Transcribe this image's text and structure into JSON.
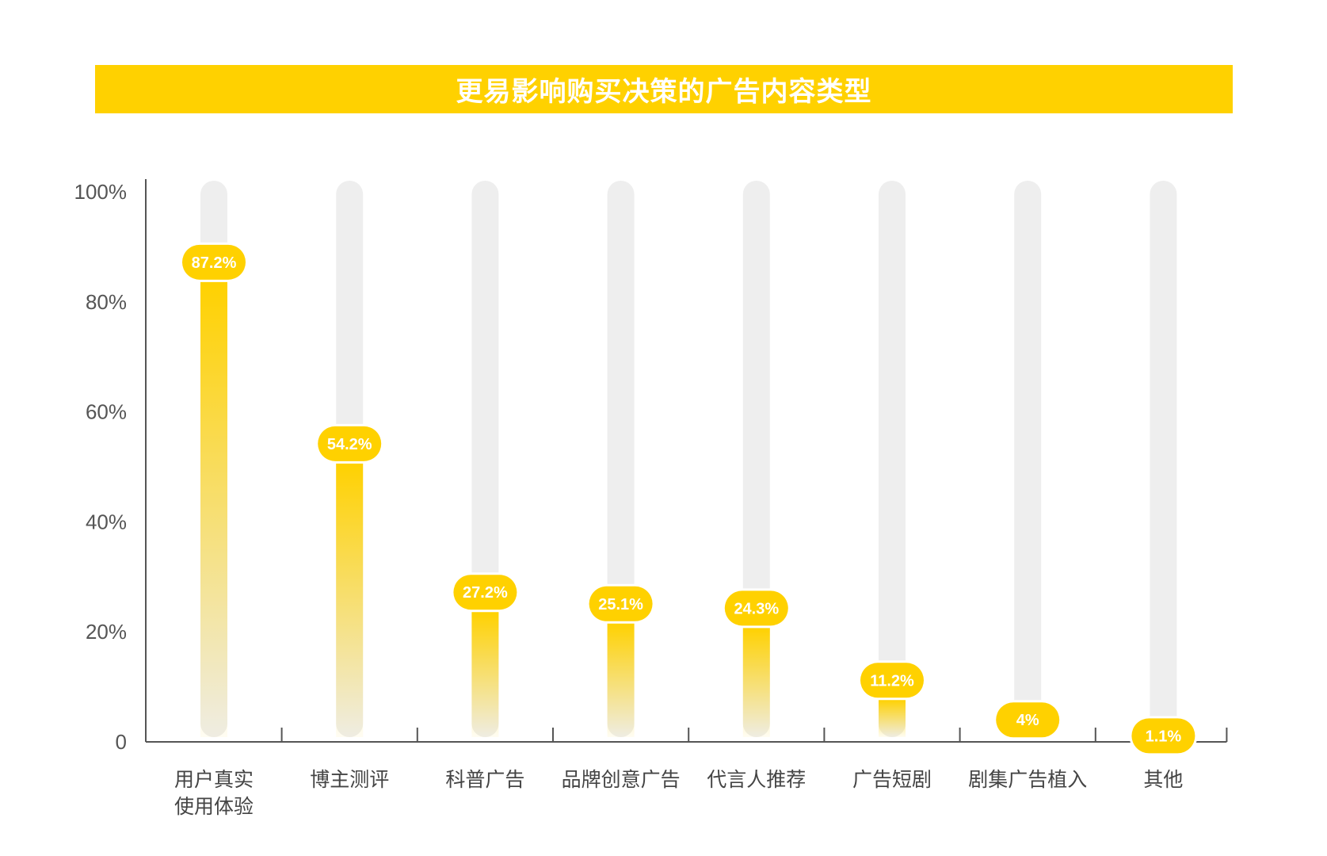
{
  "chart_data": {
    "type": "bar",
    "title": "更易影响购买决策的广告内容类型",
    "categories": [
      [
        "用户真实",
        "使用体验"
      ],
      [
        "博主测评"
      ],
      [
        "科普广告"
      ],
      [
        "品牌创意广告"
      ],
      [
        "代言人推荐"
      ],
      [
        "广告短剧"
      ],
      [
        "剧集广告植入"
      ],
      [
        "其他"
      ]
    ],
    "values": [
      87.2,
      54.2,
      27.2,
      25.1,
      24.3,
      11.2,
      4,
      1.1
    ],
    "value_labels": [
      "87.2%",
      "54.2%",
      "27.2%",
      "25.1%",
      "24.3%",
      "11.2%",
      "4%",
      "1.1%"
    ],
    "yticks": [
      0,
      20,
      40,
      60,
      80,
      100
    ],
    "ytick_labels": [
      "0",
      "20%",
      "40%",
      "60%",
      "80%",
      "100%"
    ],
    "ylim": [
      0,
      100
    ],
    "grid": false,
    "legend": "none",
    "colors": {
      "accent": "#FFD100",
      "track": "#EEEEEE",
      "axis": "#555555"
    }
  }
}
